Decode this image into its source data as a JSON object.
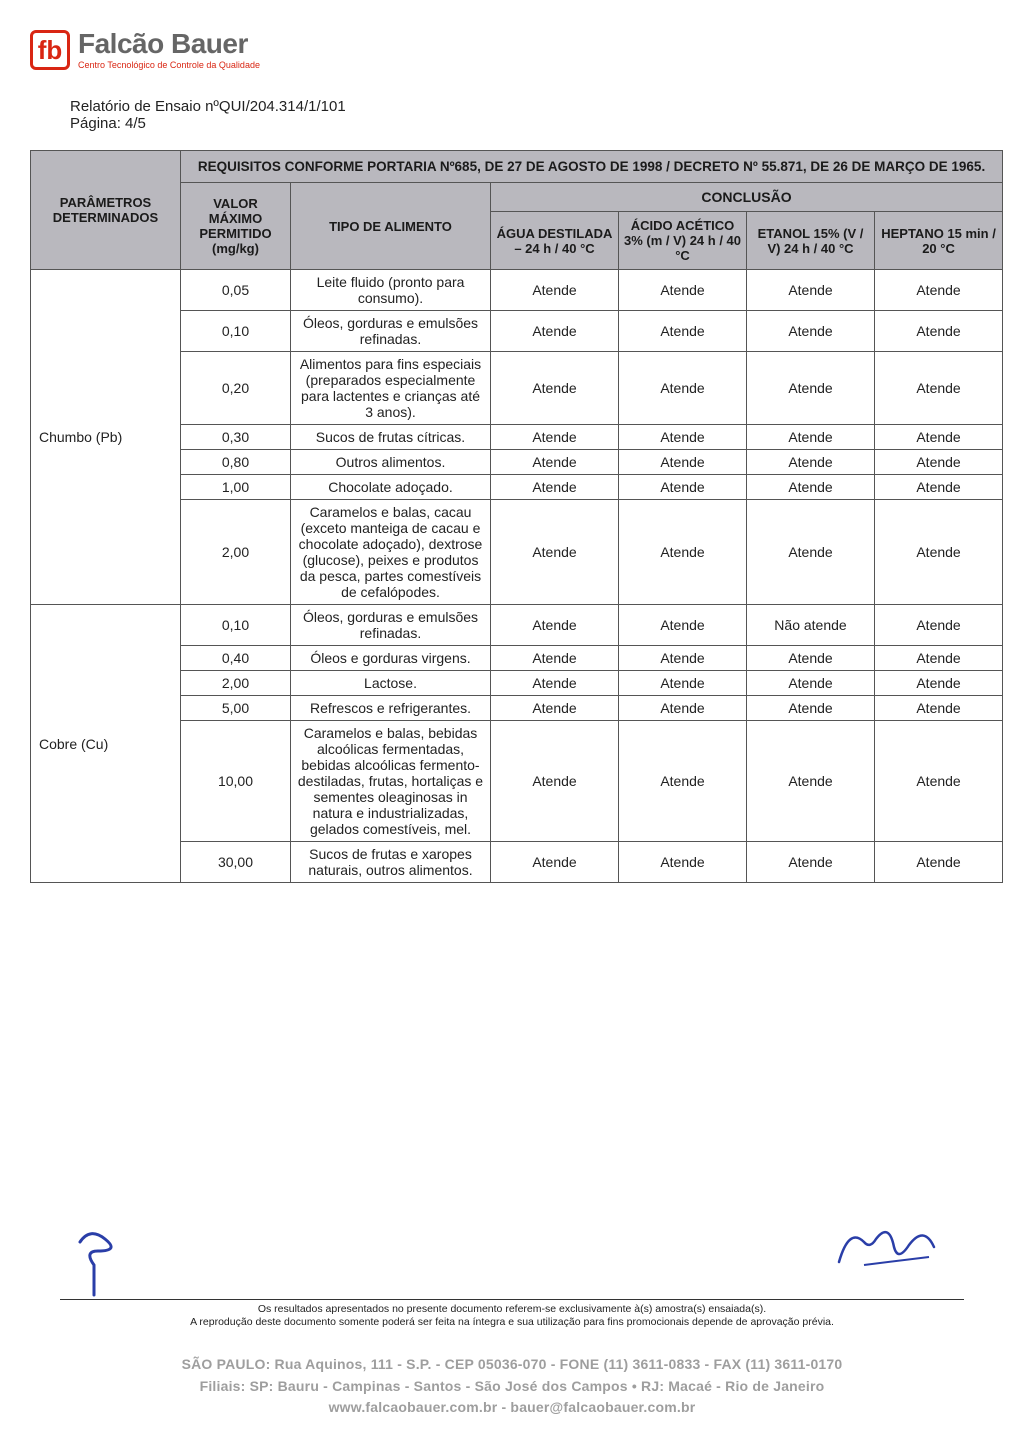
{
  "logo": {
    "brand": "Falcão Bauer",
    "sub": "Centro Tecnológico de Controle da Qualidade",
    "mark": "fb"
  },
  "report": {
    "title": "Relatório de Ensaio nºQUI/204.314/1/101",
    "page": "Página: 4/5"
  },
  "table": {
    "req_title": "REQUISITOS CONFORME PORTARIA Nº685, DE 27 DE AGOSTO DE 1998 / DECRETO Nº 55.871, DE 26 DE MARÇO DE 1965.",
    "headers": {
      "param": "PARÂMETROS DETERMINADOS",
      "valor": "VALOR MÁXIMO PERMITIDO (mg/kg)",
      "tipo": "TIPO DE ALIMENTO",
      "conclusao": "CONCLUSÃO",
      "c1": "ÁGUA DESTILADA – 24 h / 40 °C",
      "c2": "ÁCIDO ACÉTICO 3% (m / V) 24 h / 40 °C",
      "c3": "ETANOL 15% (V / V) 24 h / 40 °C",
      "c4": "HEPTANO 15 min / 20 °C"
    },
    "groups": [
      {
        "param": "Chumbo (Pb)",
        "rows": [
          {
            "valor": "0,05",
            "tipo": "Leite fluido (pronto para consumo).",
            "c": [
              "Atende",
              "Atende",
              "Atende",
              "Atende"
            ]
          },
          {
            "valor": "0,10",
            "tipo": "Óleos, gorduras e emulsões refinadas.",
            "c": [
              "Atende",
              "Atende",
              "Atende",
              "Atende"
            ]
          },
          {
            "valor": "0,20",
            "tipo": "Alimentos para fins especiais (preparados especialmente para lactentes e crianças até 3 anos).",
            "c": [
              "Atende",
              "Atende",
              "Atende",
              "Atende"
            ]
          },
          {
            "valor": "0,30",
            "tipo": "Sucos de frutas cítricas.",
            "c": [
              "Atende",
              "Atende",
              "Atende",
              "Atende"
            ]
          },
          {
            "valor": "0,80",
            "tipo": "Outros alimentos.",
            "c": [
              "Atende",
              "Atende",
              "Atende",
              "Atende"
            ]
          },
          {
            "valor": "1,00",
            "tipo": "Chocolate adoçado.",
            "c": [
              "Atende",
              "Atende",
              "Atende",
              "Atende"
            ]
          },
          {
            "valor": "2,00",
            "tipo": "Caramelos e balas, cacau (exceto manteiga de cacau e chocolate adoçado), dextrose (glucose), peixes e produtos da pesca, partes comestíveis de cefalópodes.",
            "c": [
              "Atende",
              "Atende",
              "Atende",
              "Atende"
            ]
          }
        ]
      },
      {
        "param": "Cobre (Cu)",
        "rows": [
          {
            "valor": "0,10",
            "tipo": "Óleos, gorduras e emulsões refinadas.",
            "c": [
              "Atende",
              "Atende",
              "Não atende",
              "Atende"
            ]
          },
          {
            "valor": "0,40",
            "tipo": "Óleos e gorduras virgens.",
            "c": [
              "Atende",
              "Atende",
              "Atende",
              "Atende"
            ]
          },
          {
            "valor": "2,00",
            "tipo": "Lactose.",
            "c": [
              "Atende",
              "Atende",
              "Atende",
              "Atende"
            ]
          },
          {
            "valor": "5,00",
            "tipo": "Refrescos e refrigerantes.",
            "c": [
              "Atende",
              "Atende",
              "Atende",
              "Atende"
            ]
          },
          {
            "valor": "10,00",
            "tipo": "Caramelos e balas, bebidas alcoólicas fermentadas, bebidas alcoólicas fermento-destiladas, frutas, hortaliças e sementes oleaginosas in natura e industrializadas, gelados comestíveis, mel.",
            "c": [
              "Atende",
              "Atende",
              "Atende",
              "Atende"
            ]
          },
          {
            "valor": "30,00",
            "tipo": "Sucos de frutas e xaropes naturais, outros alimentos.",
            "c": [
              "Atende",
              "Atende",
              "Atende",
              "Atende"
            ]
          }
        ]
      }
    ]
  },
  "disclaimer": {
    "l1": "Os resultados apresentados no presente documento referem-se exclusivamente à(s) amostra(s) ensaiada(s).",
    "l2": "A reprodução deste documento somente poderá ser feita na íntegra e sua utilização para fins promocionais depende de aprovação prévia."
  },
  "footer": {
    "l1": "SÃO PAULO: Rua Aquinos, 111  -  S.P.  -  CEP 05036-070  -  FONE (11) 3611-0833  -  FAX (11) 3611-0170",
    "l2": "Filiais: SP: Bauru  -  Campinas  -  Santos  -  São José dos Campos  •  RJ: Macaé  -  Rio de Janeiro",
    "l3": "www.falcaobauer.com.br - bauer@falcaobauer.com.br"
  }
}
